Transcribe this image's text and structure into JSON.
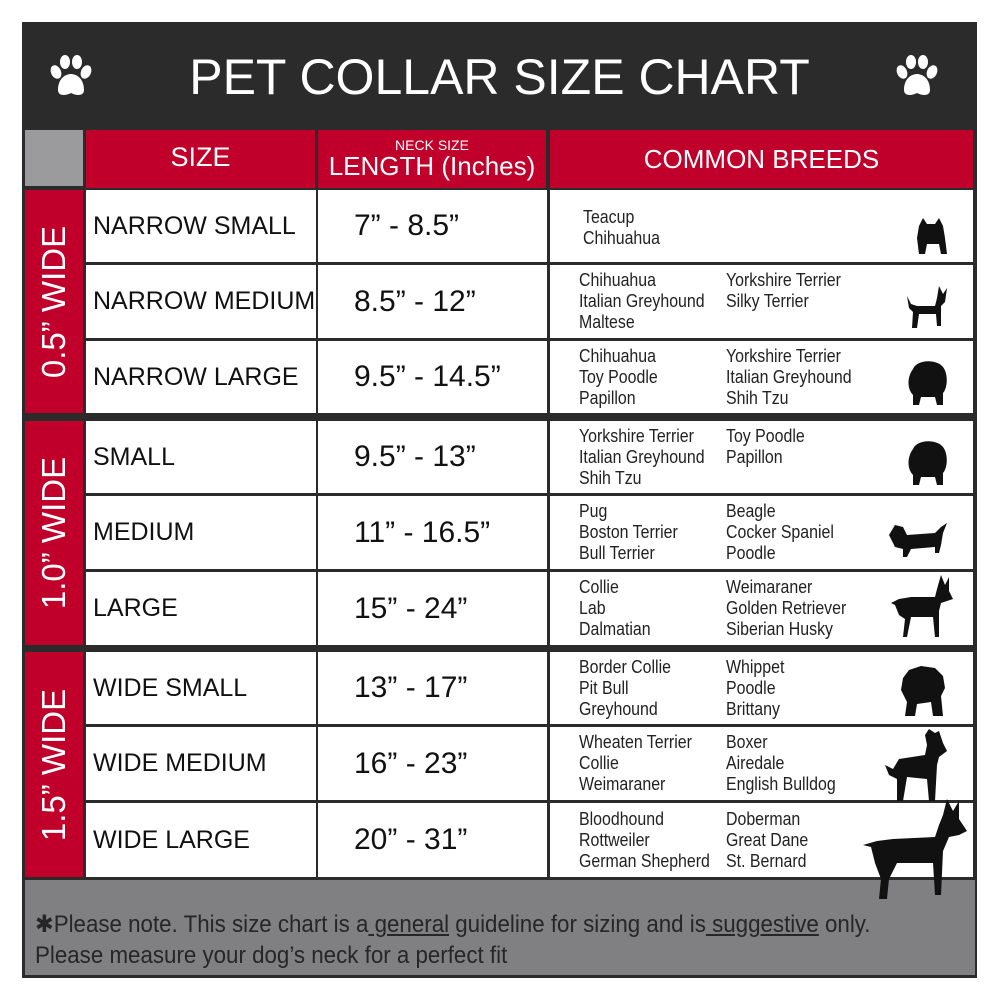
{
  "title": "PET COLLAR SIZE CHART",
  "colors": {
    "accent_red": "#c0002a",
    "dark": "#2b2b2b",
    "footer_gray": "#808083"
  },
  "icons": {
    "title_left": "paw-print-icon",
    "title_right": "paw-print-icon"
  },
  "header": {
    "size": "SIZE",
    "length_small": "NECK SIZE",
    "length": "LENGTH (Inches)",
    "breeds": "COMMON BREEDS"
  },
  "groups": [
    {
      "label": "0.5” WIDE",
      "rows": [
        {
          "size": "NARROW SMALL",
          "length": "7” - 8.5”",
          "breeds_left": [
            "Teacup",
            "Chihuahua"
          ],
          "breeds_right": [],
          "icon": "yorkie-silhouette-icon"
        },
        {
          "size": "NARROW MEDIUM",
          "length": "8.5” - 12”",
          "breeds_left": [
            "Chihuahua",
            "Italian Greyhound",
            "Maltese"
          ],
          "breeds_right": [
            "Yorkshire Terrier",
            "Silky Terrier"
          ],
          "icon": "chihuahua-silhouette-icon"
        },
        {
          "size": "NARROW LARGE",
          "length": "9.5” - 14.5”",
          "breeds_left": [
            "Chihuahua",
            "Toy Poodle",
            "Papillon"
          ],
          "breeds_right": [
            "Yorkshire Terrier",
            "Italian Greyhound",
            "Shih Tzu"
          ],
          "icon": "pomeranian-silhouette-icon"
        }
      ]
    },
    {
      "label": "1.0” WIDE",
      "rows": [
        {
          "size": "SMALL",
          "length": "9.5” - 13”",
          "breeds_left": [
            "Yorkshire Terrier",
            "Italian Greyhound",
            "Shih Tzu"
          ],
          "breeds_right": [
            "Toy Poodle",
            "Papillon"
          ],
          "icon": "pomeranian-silhouette-icon"
        },
        {
          "size": "MEDIUM",
          "length": "11” - 16.5”",
          "breeds_left": [
            "Pug",
            "Boston Terrier",
            "Bull Terrier"
          ],
          "breeds_right": [
            "Beagle",
            "Cocker Spaniel",
            "Poodle"
          ],
          "icon": "dachshund-silhouette-icon"
        },
        {
          "size": "LARGE",
          "length": "15” - 24”",
          "breeds_left": [
            "Collie",
            "Lab",
            "Dalmatian"
          ],
          "breeds_right": [
            "Weimaraner",
            "Golden Retriever",
            "Siberian Husky"
          ],
          "icon": "shepherd-silhouette-icon"
        }
      ]
    },
    {
      "label": "1.5” WIDE",
      "rows": [
        {
          "size": "WIDE SMALL",
          "length": "13” - 17”",
          "breeds_left": [
            "Border Collie",
            "Pit Bull",
            "Greyhound"
          ],
          "breeds_right": [
            "Whippet",
            "Poodle",
            "Brittany"
          ],
          "icon": "bulldog-silhouette-icon"
        },
        {
          "size": "WIDE MEDIUM",
          "length": "16” - 23”",
          "breeds_left": [
            "Wheaten Terrier",
            "Collie",
            "Weimaraner"
          ],
          "breeds_right": [
            "Boxer",
            "Airedale",
            "English Bulldog"
          ],
          "icon": "pitbull-silhouette-icon"
        },
        {
          "size": "WIDE LARGE",
          "length": "20” - 31”",
          "breeds_left": [
            "Bloodhound",
            "Rottweiler",
            "German Shepherd"
          ],
          "breeds_right": [
            "Doberman",
            "Great Dane",
            "St. Bernard"
          ],
          "icon": "doberman-silhouette-icon"
        }
      ]
    }
  ],
  "footer": {
    "line1_a": "✱Please note. This size chart is a",
    "line1_general": " general",
    "line1_b": " guideline for sizing and is",
    "line1_suggestive": " suggestive",
    "line1_c": " only.",
    "line2": "Please measure your dog’s neck for a perfect fit"
  }
}
